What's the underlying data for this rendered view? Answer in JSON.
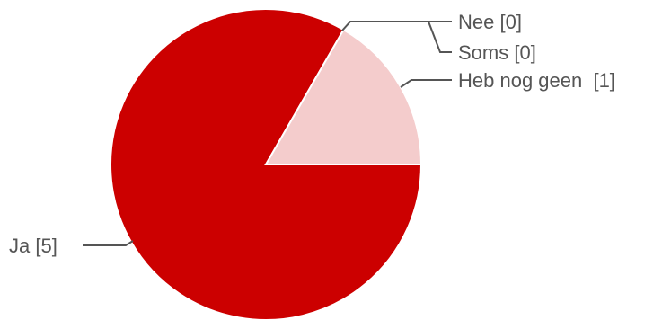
{
  "chart_data": {
    "type": "pie",
    "slices": [
      {
        "label": "Ja [5]",
        "category": "Ja",
        "value": 5,
        "color": "#cc0000"
      },
      {
        "label": "Nee [0]",
        "category": "Nee",
        "value": 0,
        "color": "#f4cccc"
      },
      {
        "label": "Soms [0]",
        "category": "Soms",
        "value": 0,
        "color": "#f4cccc"
      },
      {
        "label": "Heb nog geen  [1]",
        "category": "Heb nog geen",
        "value": 1,
        "color": "#f4cccc"
      }
    ],
    "label_color": "#555555",
    "legend": "outside labels with leader lines"
  }
}
